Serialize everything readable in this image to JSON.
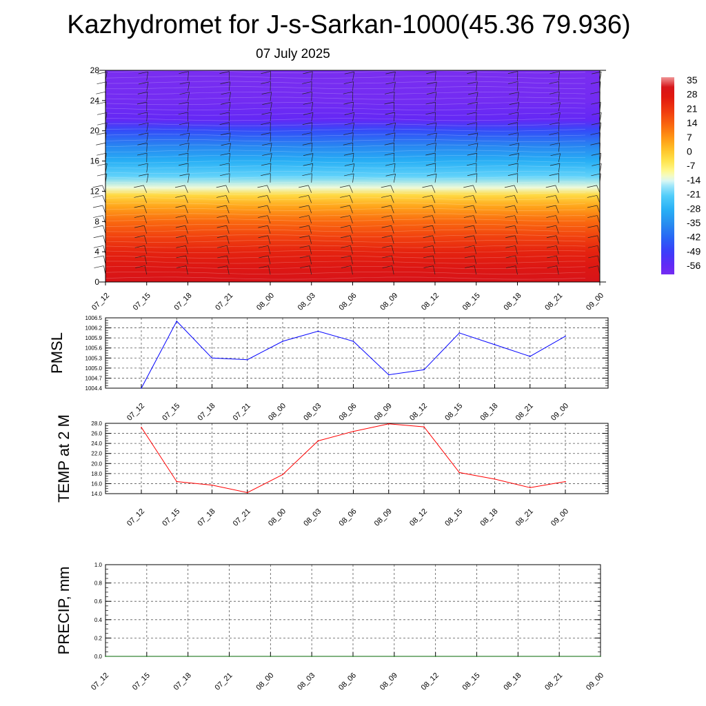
{
  "title": "Kazhydromet for J-s-Sarkan-1000(45.36 79.936)",
  "subtitle": "07 July 2025",
  "chart_data": [
    {
      "type": "heatmap",
      "name": "vertical-cross-section",
      "xlabel": "",
      "ylabel": "",
      "x_ticks": [
        "07_12",
        "07_15",
        "07_18",
        "07_21",
        "08_00",
        "08_03",
        "08_06",
        "08_09",
        "08_12",
        "08_15",
        "08_18",
        "08_21",
        "09_00"
      ],
      "y_ticks": [
        "0",
        "4",
        "8",
        "12",
        "16",
        "20",
        "24",
        "28"
      ],
      "ylim": [
        0,
        28
      ],
      "colorbar": {
        "labels": [
          "35",
          "28",
          "21",
          "14",
          "7",
          "0",
          "-7",
          "-14",
          "-21",
          "-28",
          "-35",
          "-42",
          "-49",
          "-56"
        ],
        "range": [
          -60,
          38
        ]
      },
      "temperature_profile": [
        {
          "height": 0,
          "value": 33
        },
        {
          "height": 2,
          "value": 30
        },
        {
          "height": 4,
          "value": 26
        },
        {
          "height": 6,
          "value": 20
        },
        {
          "height": 8,
          "value": 14
        },
        {
          "height": 10,
          "value": 6
        },
        {
          "height": 11.5,
          "value": -2
        },
        {
          "height": 12.5,
          "value": -12
        },
        {
          "height": 14,
          "value": -20
        },
        {
          "height": 16,
          "value": -28
        },
        {
          "height": 18,
          "value": -36
        },
        {
          "height": 20,
          "value": -46
        },
        {
          "height": 21.5,
          "value": -56
        },
        {
          "height": 24,
          "value": -60
        },
        {
          "height": 28,
          "value": -62
        }
      ],
      "colors": {
        "top": "#7a2ef0",
        "low": "#e01010"
      }
    },
    {
      "type": "line",
      "name": "pmsl",
      "ylabel": "PMSL",
      "categories": [
        "07_12",
        "07_15",
        "07_18",
        "07_21",
        "08_00",
        "08_03",
        "08_06",
        "08_09",
        "08_12",
        "08_15",
        "08_18",
        "08_21",
        "09_00"
      ],
      "values": [
        1004.4,
        1006.4,
        1005.3,
        1005.25,
        1005.8,
        1006.1,
        1005.8,
        1004.8,
        1004.95,
        1006.05,
        1005.7,
        1005.35,
        1005.95
      ],
      "y_ticks": [
        "1004.4",
        "1004.7",
        "1005.0",
        "1005.3",
        "1005.6",
        "1005.9",
        "1006.2",
        "1006.5"
      ],
      "ylim": [
        1004.4,
        1006.5
      ],
      "color": "#0000ff"
    },
    {
      "type": "line",
      "name": "temp2m",
      "ylabel": "TEMP at 2 M",
      "categories": [
        "07_12",
        "07_15",
        "07_18",
        "07_21",
        "08_00",
        "08_03",
        "08_06",
        "08_09",
        "08_12",
        "08_15",
        "08_18",
        "08_21",
        "09_00"
      ],
      "values": [
        27.2,
        16.4,
        15.7,
        14.2,
        17.8,
        24.5,
        26.4,
        27.9,
        27.3,
        18.2,
        16.9,
        15.2,
        16.4
      ],
      "y_ticks": [
        "14.0",
        "16.0",
        "18.0",
        "20.0",
        "22.0",
        "24.0",
        "26.0",
        "28.0"
      ],
      "ylim": [
        14,
        28
      ],
      "color": "#ff0000"
    },
    {
      "type": "line",
      "name": "precip",
      "ylabel": "PRECIP, mm",
      "categories": [
        "07_12",
        "07_15",
        "07_18",
        "07_21",
        "08_00",
        "08_03",
        "08_06",
        "08_09",
        "08_12",
        "08_15",
        "08_18",
        "08_21",
        "09_00"
      ],
      "values": [
        0,
        0,
        0,
        0,
        0,
        0,
        0,
        0,
        0,
        0,
        0,
        0,
        0
      ],
      "y_ticks": [
        "0.0",
        "0.2",
        "0.4",
        "0.6",
        "0.8",
        "1.0"
      ],
      "ylim": [
        0,
        1
      ],
      "color": "#006400"
    }
  ]
}
